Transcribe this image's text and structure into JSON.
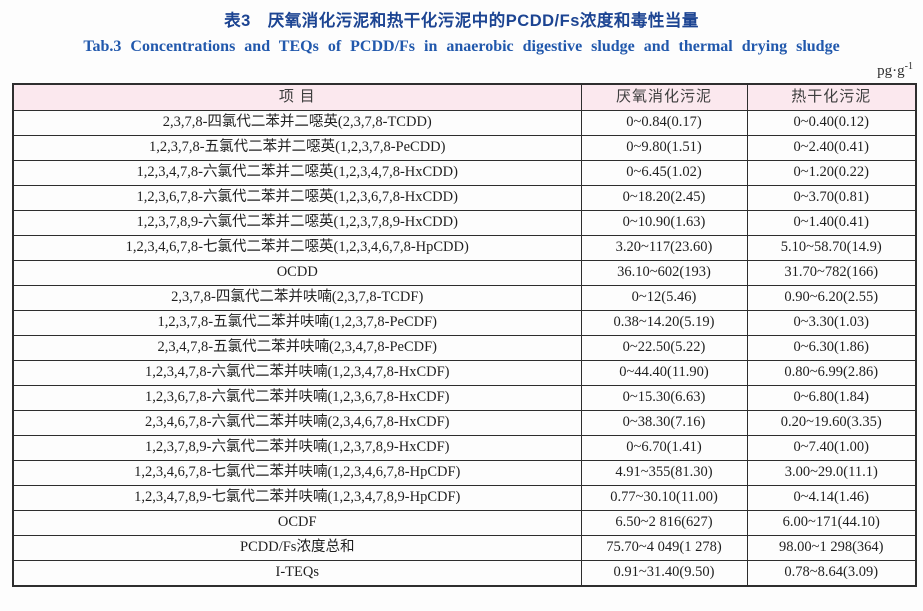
{
  "titles": {
    "cn": "表3　厌氧消化污泥和热干化污泥中的PCDD/Fs浓度和毒性当量",
    "en": "Tab.3 Concentrations and TEQs of PCDD/Fs in anaerobic digestive sludge and thermal drying sludge"
  },
  "unit": {
    "base": "pg·g",
    "sup": "-1"
  },
  "table": {
    "headers": [
      "项 目",
      "厌氧消化污泥",
      "热干化污泥"
    ],
    "rows": [
      [
        "2,3,7,8-四氯代二苯并二噁英(2,3,7,8-TCDD)",
        "0~0.84(0.17)",
        "0~0.40(0.12)"
      ],
      [
        "1,2,3,7,8-五氯代二苯并二噁英(1,2,3,7,8-PeCDD)",
        "0~9.80(1.51)",
        "0~2.40(0.41)"
      ],
      [
        "1,2,3,4,7,8-六氯代二苯并二噁英(1,2,3,4,7,8-HxCDD)",
        "0~6.45(1.02)",
        "0~1.20(0.22)"
      ],
      [
        "1,2,3,6,7,8-六氯代二苯并二噁英(1,2,3,6,7,8-HxCDD)",
        "0~18.20(2.45)",
        "0~3.70(0.81)"
      ],
      [
        "1,2,3,7,8,9-六氯代二苯并二噁英(1,2,3,7,8,9-HxCDD)",
        "0~10.90(1.63)",
        "0~1.40(0.41)"
      ],
      [
        "1,2,3,4,6,7,8-七氯代二苯并二噁英(1,2,3,4,6,7,8-HpCDD)",
        "3.20~117(23.60)",
        "5.10~58.70(14.9)"
      ],
      [
        "OCDD",
        "36.10~602(193)",
        "31.70~782(166)"
      ],
      [
        "2,3,7,8-四氯代二苯并呋喃(2,3,7,8-TCDF)",
        "0~12(5.46)",
        "0.90~6.20(2.55)"
      ],
      [
        "1,2,3,7,8-五氯代二苯并呋喃(1,2,3,7,8-PeCDF)",
        "0.38~14.20(5.19)",
        "0~3.30(1.03)"
      ],
      [
        "2,3,4,7,8-五氯代二苯并呋喃(2,3,4,7,8-PeCDF)",
        "0~22.50(5.22)",
        "0~6.30(1.86)"
      ],
      [
        "1,2,3,4,7,8-六氯代二苯并呋喃(1,2,3,4,7,8-HxCDF)",
        "0~44.40(11.90)",
        "0.80~6.99(2.86)"
      ],
      [
        "1,2,3,6,7,8-六氯代二苯并呋喃(1,2,3,6,7,8-HxCDF)",
        "0~15.30(6.63)",
        "0~6.80(1.84)"
      ],
      [
        "2,3,4,6,7,8-六氯代二苯并呋喃(2,3,4,6,7,8-HxCDF)",
        "0~38.30(7.16)",
        "0.20~19.60(3.35)"
      ],
      [
        "1,2,3,7,8,9-六氯代二苯并呋喃(1,2,3,7,8,9-HxCDF)",
        "0~6.70(1.41)",
        "0~7.40(1.00)"
      ],
      [
        "1,2,3,4,6,7,8-七氯代二苯并呋喃(1,2,3,4,6,7,8-HpCDF)",
        "4.91~355(81.30)",
        "3.00~29.0(11.1)"
      ],
      [
        "1,2,3,4,7,8,9-七氯代二苯并呋喃(1,2,3,4,7,8,9-HpCDF)",
        "0.77~30.10(11.00)",
        "0~4.14(1.46)"
      ],
      [
        "OCDF",
        "6.50~2 816(627)",
        "6.00~171(44.10)"
      ],
      [
        "PCDD/Fs浓度总和",
        "75.70~4 049(1 278)",
        "98.00~1 298(364)"
      ],
      [
        "I-TEQs",
        "0.91~31.40(9.50)",
        "0.78~8.64(3.09)"
      ]
    ]
  },
  "colors": {
    "header_bg": "#fbe8ee",
    "border_color": "#2e2e2e",
    "title_cn_color": "#1c4492",
    "title_en_color": "#2158ac",
    "body_text": "#1f1f1f",
    "header_text": "#3d3d3d",
    "page_bg": "#fdfdfd"
  }
}
